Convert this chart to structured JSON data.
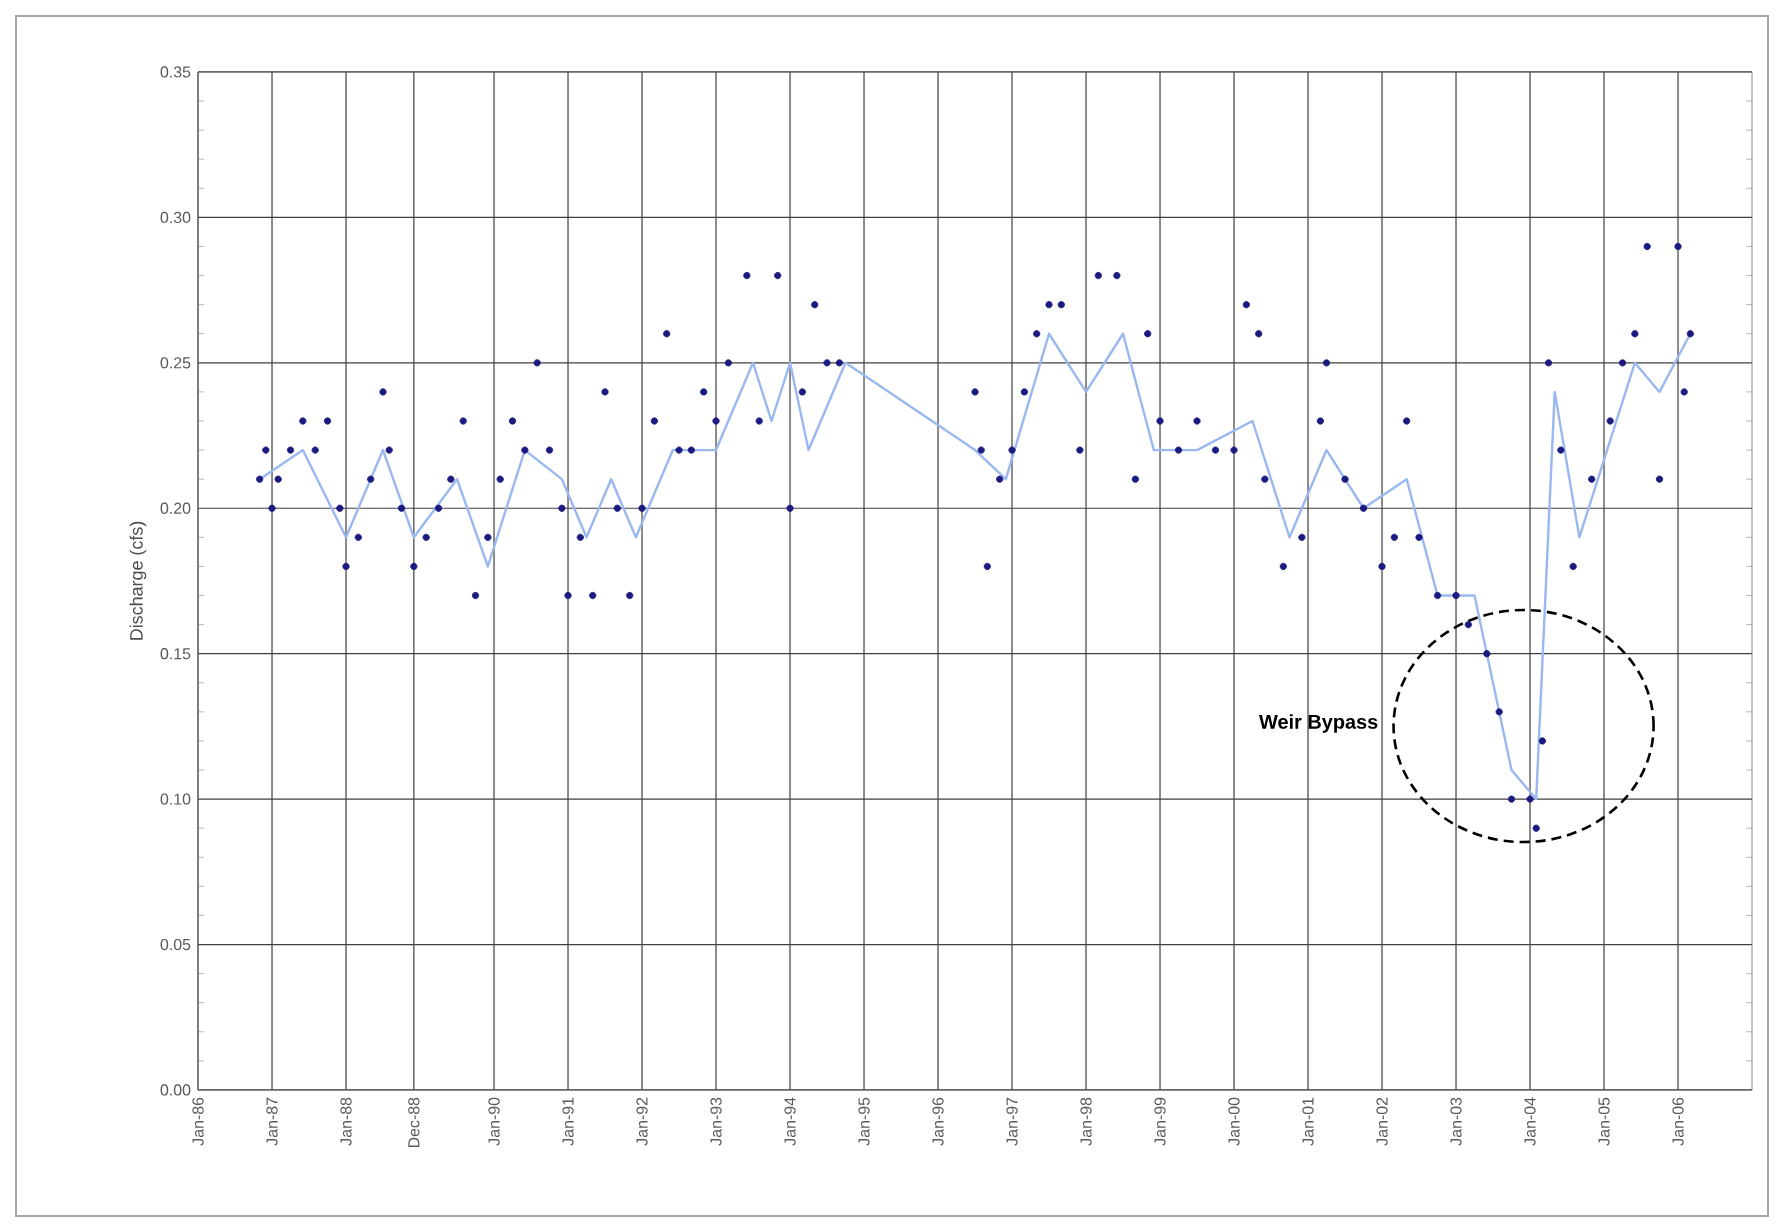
{
  "chart_data": {
    "type": "scatter",
    "ylabel": "Discharge (cfs)",
    "xlim": [
      "1986-01",
      "2007-01"
    ],
    "ylim": [
      0,
      0.35
    ],
    "xticks": [
      {
        "value": "1986-01",
        "label": "Jan-86"
      },
      {
        "value": "1987-01",
        "label": "Jan-87"
      },
      {
        "value": "1988-01",
        "label": "Jan-88"
      },
      {
        "value": "1988-12",
        "label": "Dec-88"
      },
      {
        "value": "1990-01",
        "label": "Jan-90"
      },
      {
        "value": "1991-01",
        "label": "Jan-91"
      },
      {
        "value": "1992-01",
        "label": "Jan-92"
      },
      {
        "value": "1993-01",
        "label": "Jan-93"
      },
      {
        "value": "1994-01",
        "label": "Jan-94"
      },
      {
        "value": "1995-01",
        "label": "Jan-95"
      },
      {
        "value": "1996-01",
        "label": "Jan-96"
      },
      {
        "value": "1997-01",
        "label": "Jan-97"
      },
      {
        "value": "1998-01",
        "label": "Jan-98"
      },
      {
        "value": "1999-01",
        "label": "Jan-99"
      },
      {
        "value": "2000-01",
        "label": "Jan-00"
      },
      {
        "value": "2001-01",
        "label": "Jan-01"
      },
      {
        "value": "2002-01",
        "label": "Jan-02"
      },
      {
        "value": "2003-01",
        "label": "Jan-03"
      },
      {
        "value": "2004-01",
        "label": "Jan-04"
      },
      {
        "value": "2005-01",
        "label": "Jan-05"
      },
      {
        "value": "2006-01",
        "label": "Jan-06"
      }
    ],
    "yticks": [
      {
        "value": 0,
        "label": "0.00"
      },
      {
        "value": 0.05,
        "label": "0.05"
      },
      {
        "value": 0.1,
        "label": "0.10"
      },
      {
        "value": 0.15,
        "label": "0.15"
      },
      {
        "value": 0.2,
        "label": "0.20"
      },
      {
        "value": 0.25,
        "label": "0.25"
      },
      {
        "value": 0.3,
        "label": "0.30"
      },
      {
        "value": 0.35,
        "label": "0.35"
      }
    ],
    "grid": true,
    "line_style": "solid",
    "annotations": [
      "**Weir Bypass**"
    ],
    "series": [
      {
        "type": "line",
        "color": "#9ab8f0",
        "x": [
          "1986-11",
          "1987-06",
          "1988-01",
          "1988-07",
          "1988-12",
          "1989-07",
          "1989-12",
          "1990-06",
          "1990-12",
          "1991-04",
          "1991-08",
          "1991-12",
          "1992-06",
          "1993-01",
          "1993-07",
          "1993-10",
          "1994-01",
          "1994-04",
          "1994-10",
          "1996-07",
          "1996-12",
          "1997-07",
          "1998-01",
          "1998-07",
          "1998-12",
          "1999-07",
          "2000-04",
          "2000-10",
          "2001-04",
          "2001-10",
          "2002-05",
          "2002-10",
          "2003-04",
          "2003-10",
          "2004-02",
          "2004-05",
          "2004-09",
          "2005-06",
          "2005-10",
          "2006-03"
        ],
        "values": [
          0.21,
          0.22,
          0.19,
          0.22,
          0.19,
          0.21,
          0.18,
          0.22,
          0.21,
          0.19,
          0.21,
          0.19,
          0.22,
          0.22,
          0.25,
          0.23,
          0.25,
          0.22,
          0.25,
          0.22,
          0.21,
          0.26,
          0.24,
          0.26,
          0.22,
          0.22,
          0.23,
          0.19,
          0.22,
          0.2,
          0.21,
          0.17,
          0.17,
          0.11,
          0.1,
          0.24,
          0.19,
          0.25,
          0.24,
          0.26
        ]
      },
      {
        "color": "#1a1a80",
        "marker": "circle",
        "x": [
          "1986-11",
          "1986-12",
          "1987-01",
          "1987-02",
          "1987-04",
          "1987-06",
          "1987-08",
          "1987-10",
          "1987-12",
          "1988-01",
          "1988-03",
          "1988-05",
          "1988-07",
          "1988-08",
          "1988-10",
          "1988-12",
          "1989-02",
          "1989-04",
          "1989-06",
          "1989-08",
          "1989-10",
          "1989-12",
          "1990-02",
          "1990-04",
          "1990-06",
          "1990-08",
          "1990-10",
          "1990-12",
          "1991-01",
          "1991-03",
          "1991-05",
          "1991-07",
          "1991-09",
          "1991-11",
          "1992-01",
          "1992-03",
          "1992-05",
          "1992-07",
          "1992-09",
          "1992-11",
          "1993-01",
          "1993-03",
          "1993-06",
          "1993-08",
          "1993-11",
          "1994-01",
          "1994-03",
          "1994-05",
          "1994-07",
          "1994-09",
          "1996-07",
          "1996-08",
          "1996-09",
          "1996-11",
          "1997-01",
          "1997-03",
          "1997-05",
          "1997-07",
          "1997-09",
          "1997-12",
          "1998-03",
          "1998-06",
          "1998-09",
          "1998-11",
          "1999-01",
          "1999-04",
          "1999-07",
          "1999-10",
          "2000-01",
          "2000-03",
          "2000-05",
          "2000-06",
          "2000-09",
          "2000-12",
          "2001-03",
          "2001-04",
          "2001-07",
          "2001-10",
          "2002-01",
          "2002-03",
          "2002-05",
          "2002-07",
          "2002-10",
          "2003-01",
          "2003-03",
          "2003-06",
          "2003-08",
          "2003-10",
          "2004-01",
          "2004-02",
          "2004-03",
          "2004-04",
          "2004-06",
          "2004-08",
          "2004-11",
          "2005-02",
          "2005-04",
          "2005-06",
          "2005-08",
          "2005-10",
          "2006-01",
          "2006-02",
          "2006-03"
        ],
        "values": [
          0.21,
          0.22,
          0.2,
          0.21,
          0.22,
          0.23,
          0.22,
          0.23,
          0.2,
          0.18,
          0.19,
          0.21,
          0.24,
          0.22,
          0.2,
          0.18,
          0.19,
          0.2,
          0.21,
          0.23,
          0.17,
          0.19,
          0.21,
          0.23,
          0.22,
          0.25,
          0.22,
          0.2,
          0.17,
          0.19,
          0.17,
          0.24,
          0.2,
          0.17,
          0.2,
          0.23,
          0.26,
          0.22,
          0.22,
          0.24,
          0.23,
          0.25,
          0.28,
          0.23,
          0.28,
          0.2,
          0.24,
          0.27,
          0.25,
          0.25,
          0.24,
          0.22,
          0.18,
          0.21,
          0.22,
          0.24,
          0.26,
          0.27,
          0.27,
          0.22,
          0.28,
          0.28,
          0.21,
          0.26,
          0.23,
          0.22,
          0.23,
          0.22,
          0.22,
          0.27,
          0.26,
          0.21,
          0.18,
          0.19,
          0.23,
          0.25,
          0.21,
          0.2,
          0.18,
          0.19,
          0.23,
          0.19,
          0.17,
          0.17,
          0.16,
          0.15,
          0.13,
          0.1,
          0.1,
          0.09,
          0.12,
          0.25,
          0.22,
          0.18,
          0.21,
          0.23,
          0.25,
          0.26,
          0.29,
          0.21,
          0.29,
          0.24,
          0.26
        ]
      }
    ]
  }
}
